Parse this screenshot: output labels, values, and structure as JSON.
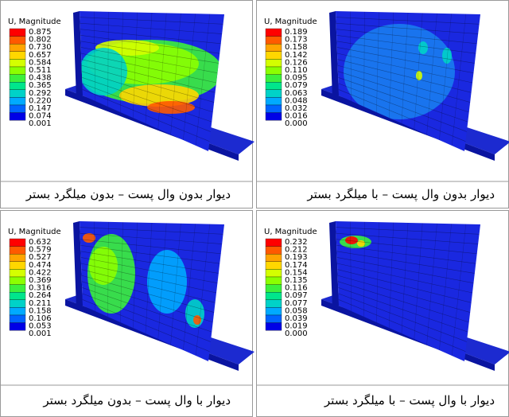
{
  "panels": [
    {
      "legend_title": "U, Magnitude",
      "legend_values": [
        "0.875",
        "0.802",
        "0.730",
        "0.657",
        "0.584",
        "0.511",
        "0.438",
        "0.365",
        "0.292",
        "0.220",
        "0.147",
        "0.074",
        "0.001"
      ],
      "caption": "دیوار بدون وال پست – بدون میلگرد بستر"
    },
    {
      "legend_title": "U, Magnitude",
      "legend_values": [
        "0.189",
        "0.173",
        "0.158",
        "0.142",
        "0.126",
        "0.110",
        "0.095",
        "0.079",
        "0.063",
        "0.048",
        "0.032",
        "0.016",
        "0.000"
      ],
      "caption": "دیوار بدون وال پست – با میلگرد بستر"
    },
    {
      "legend_title": "U, Magnitude",
      "legend_values": [
        "0.632",
        "0.579",
        "0.527",
        "0.474",
        "0.422",
        "0.369",
        "0.316",
        "0.264",
        "0.211",
        "0.158",
        "0.106",
        "0.053",
        "0.001"
      ],
      "caption": "دیوار با وال پست – بدون میلگرد بستر"
    },
    {
      "legend_title": "U, Magnitude",
      "legend_values": [
        "0.232",
        "0.212",
        "0.193",
        "0.174",
        "0.154",
        "0.135",
        "0.116",
        "0.097",
        "0.077",
        "0.058",
        "0.039",
        "0.019",
        "0.000"
      ],
      "caption": "دیوار با وال پست – با میلگرد بستر"
    }
  ]
}
